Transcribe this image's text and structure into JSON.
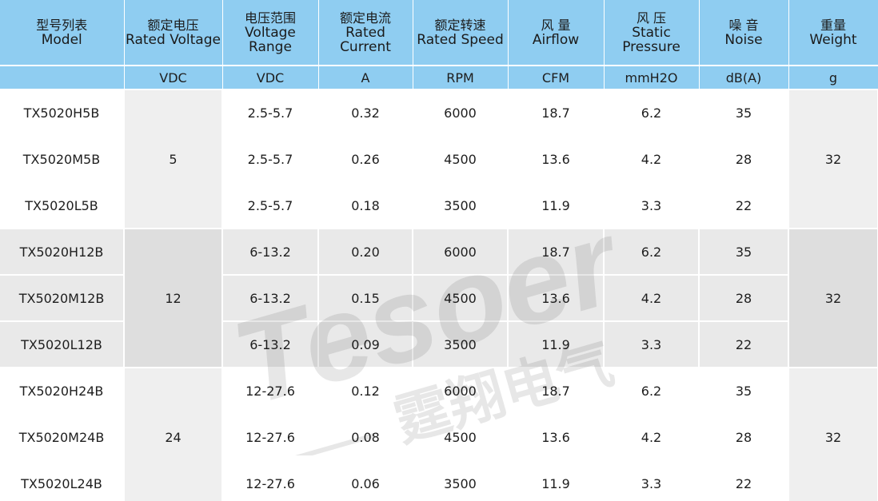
{
  "header": {
    "columns": [
      {
        "cn": "型号列表",
        "en": "Model",
        "unit": ""
      },
      {
        "cn": "额定电压",
        "en": "Rated Voltage",
        "unit": "VDC"
      },
      {
        "cn": "电压范围",
        "en": "Voltage Range",
        "unit": "VDC"
      },
      {
        "cn": "额定电流",
        "en": "Rated Current",
        "unit": "A"
      },
      {
        "cn": "额定转速",
        "en": "Rated Speed",
        "unit": "RPM"
      },
      {
        "cn": "风 量",
        "en": "Airflow",
        "unit": "CFM"
      },
      {
        "cn": "风 压",
        "en": "Static Pressure",
        "unit": "mmH2O"
      },
      {
        "cn": "噪 音",
        "en": "Noise",
        "unit": "dB(A)"
      },
      {
        "cn": "重量",
        "en": "Weight",
        "unit": "g"
      }
    ]
  },
  "groups": [
    {
      "voltage": "5",
      "weight": "32",
      "rows": [
        {
          "model": "TX5020H5B",
          "range": "2.5-5.7",
          "current": "0.32",
          "speed": "6000",
          "airflow": "18.7",
          "pressure": "6.2",
          "noise": "35"
        },
        {
          "model": "TX5020M5B",
          "range": "2.5-5.7",
          "current": "0.26",
          "speed": "4500",
          "airflow": "13.6",
          "pressure": "4.2",
          "noise": "28"
        },
        {
          "model": "TX5020L5B",
          "range": "2.5-5.7",
          "current": "0.18",
          "speed": "3500",
          "airflow": "11.9",
          "pressure": "3.3",
          "noise": "22"
        }
      ]
    },
    {
      "voltage": "12",
      "weight": "32",
      "rows": [
        {
          "model": "TX5020H12B",
          "range": "6-13.2",
          "current": "0.20",
          "speed": "6000",
          "airflow": "18.7",
          "pressure": "6.2",
          "noise": "35"
        },
        {
          "model": "TX5020M12B",
          "range": "6-13.2",
          "current": "0.15",
          "speed": "4500",
          "airflow": "13.6",
          "pressure": "4.2",
          "noise": "28"
        },
        {
          "model": "TX5020L12B",
          "range": "6-13.2",
          "current": "0.09",
          "speed": "3500",
          "airflow": "11.9",
          "pressure": "3.3",
          "noise": "22"
        }
      ]
    },
    {
      "voltage": "24",
      "weight": "32",
      "rows": [
        {
          "model": "TX5020H24B",
          "range": "12-27.6",
          "current": "0.12",
          "speed": "6000",
          "airflow": "18.7",
          "pressure": "6.2",
          "noise": "35"
        },
        {
          "model": "TX5020M24B",
          "range": "12-27.6",
          "current": "0.08",
          "speed": "4500",
          "airflow": "13.6",
          "pressure": "4.2",
          "noise": "28"
        },
        {
          "model": "TX5020L24B",
          "range": "12-27.6",
          "current": "0.06",
          "speed": "3500",
          "airflow": "11.9",
          "pressure": "3.3",
          "noise": "22"
        }
      ]
    }
  ],
  "watermark": {
    "latin": "Tesoer",
    "cn": "霆翔电气"
  },
  "colors": {
    "header_bg": "#8fcdf1",
    "group_band": "#e9e9e9",
    "merged_cell": "#efefef"
  }
}
